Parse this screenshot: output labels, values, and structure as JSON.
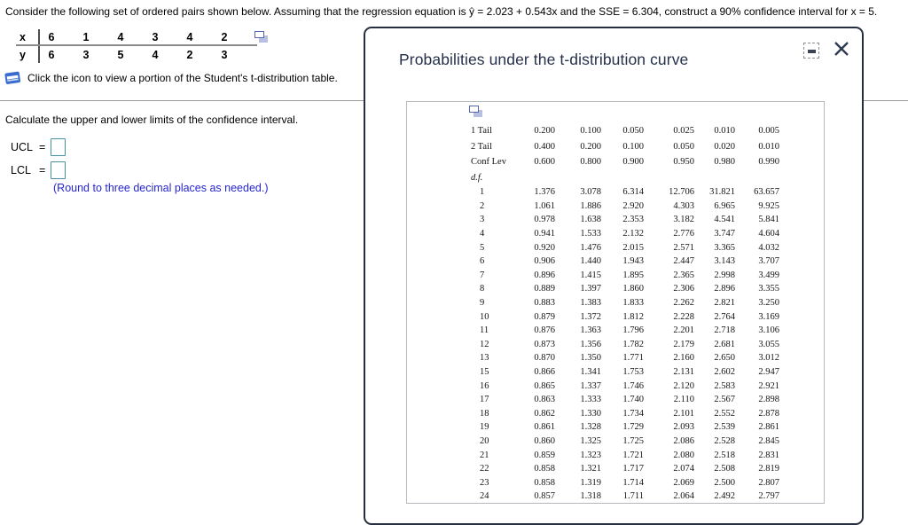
{
  "problem": {
    "statement": "Consider the following set of ordered pairs shown below. Assuming that the regression equation is ŷ = 2.023 + 0.543x and the SSE = 6.304, construct a 90% confidence interval for x = 5.",
    "pairs_table": {
      "x_label": "x",
      "y_label": "y",
      "x_values": [
        "6",
        "1",
        "4",
        "3",
        "4",
        "2"
      ],
      "y_values": [
        "6",
        "3",
        "5",
        "4",
        "2",
        "3"
      ]
    },
    "click_instruction": "Click the icon to view a portion of the Student's t-distribution table."
  },
  "answer_section": {
    "prompt": "Calculate the upper and lower limits of the confidence interval.",
    "ucl_label": "UCL",
    "lcl_label": "LCL",
    "equals": "=",
    "ucl_value": "",
    "lcl_value": "",
    "round_note": "(Round to three decimal places as needed.)",
    "round_note_color": "#2626cf",
    "input_border_color": "#4a90a4"
  },
  "modal": {
    "title": "Probabilities under the t-distribution curve",
    "title_color": "#25304a",
    "t_table": {
      "one_tail": {
        "label": "1 Tail",
        "values": [
          "0.200",
          "0.100",
          "0.050",
          "0.025",
          "0.010",
          "0.005"
        ]
      },
      "two_tail": {
        "label": "2 Tail",
        "values": [
          "0.400",
          "0.200",
          "0.100",
          "0.050",
          "0.020",
          "0.010"
        ]
      },
      "conf_lev": {
        "label": "Conf Lev",
        "values": [
          "0.600",
          "0.800",
          "0.900",
          "0.950",
          "0.980",
          "0.990"
        ]
      },
      "df_label": "d.f.",
      "rows": [
        {
          "df": "1",
          "values": [
            "1.376",
            "3.078",
            "6.314",
            "12.706",
            "31.821",
            "63.657"
          ]
        },
        {
          "df": "2",
          "values": [
            "1.061",
            "1.886",
            "2.920",
            "4.303",
            "6.965",
            "9.925"
          ]
        },
        {
          "df": "3",
          "values": [
            "0.978",
            "1.638",
            "2.353",
            "3.182",
            "4.541",
            "5.841"
          ]
        },
        {
          "df": "4",
          "values": [
            "0.941",
            "1.533",
            "2.132",
            "2.776",
            "3.747",
            "4.604"
          ]
        },
        {
          "df": "5",
          "values": [
            "0.920",
            "1.476",
            "2.015",
            "2.571",
            "3.365",
            "4.032"
          ]
        },
        {
          "df": "6",
          "values": [
            "0.906",
            "1.440",
            "1.943",
            "2.447",
            "3.143",
            "3.707"
          ]
        },
        {
          "df": "7",
          "values": [
            "0.896",
            "1.415",
            "1.895",
            "2.365",
            "2.998",
            "3.499"
          ]
        },
        {
          "df": "8",
          "values": [
            "0.889",
            "1.397",
            "1.860",
            "2.306",
            "2.896",
            "3.355"
          ]
        },
        {
          "df": "9",
          "values": [
            "0.883",
            "1.383",
            "1.833",
            "2.262",
            "2.821",
            "3.250"
          ]
        },
        {
          "df": "10",
          "values": [
            "0.879",
            "1.372",
            "1.812",
            "2.228",
            "2.764",
            "3.169"
          ]
        },
        {
          "df": "11",
          "values": [
            "0.876",
            "1.363",
            "1.796",
            "2.201",
            "2.718",
            "3.106"
          ]
        },
        {
          "df": "12",
          "values": [
            "0.873",
            "1.356",
            "1.782",
            "2.179",
            "2.681",
            "3.055"
          ]
        },
        {
          "df": "13",
          "values": [
            "0.870",
            "1.350",
            "1.771",
            "2.160",
            "2.650",
            "3.012"
          ]
        },
        {
          "df": "15",
          "values": [
            "0.866",
            "1.341",
            "1.753",
            "2.131",
            "2.602",
            "2.947"
          ]
        },
        {
          "df": "16",
          "values": [
            "0.865",
            "1.337",
            "1.746",
            "2.120",
            "2.583",
            "2.921"
          ]
        },
        {
          "df": "17",
          "values": [
            "0.863",
            "1.333",
            "1.740",
            "2.110",
            "2.567",
            "2.898"
          ]
        },
        {
          "df": "18",
          "values": [
            "0.862",
            "1.330",
            "1.734",
            "2.101",
            "2.552",
            "2.878"
          ]
        },
        {
          "df": "19",
          "values": [
            "0.861",
            "1.328",
            "1.729",
            "2.093",
            "2.539",
            "2.861"
          ]
        },
        {
          "df": "20",
          "values": [
            "0.860",
            "1.325",
            "1.725",
            "2.086",
            "2.528",
            "2.845"
          ]
        },
        {
          "df": "21",
          "values": [
            "0.859",
            "1.323",
            "1.721",
            "2.080",
            "2.518",
            "2.831"
          ]
        },
        {
          "df": "22",
          "values": [
            "0.858",
            "1.321",
            "1.717",
            "2.074",
            "2.508",
            "2.819"
          ]
        },
        {
          "df": "23",
          "values": [
            "0.858",
            "1.319",
            "1.714",
            "2.069",
            "2.500",
            "2.807"
          ]
        },
        {
          "df": "24",
          "values": [
            "0.857",
            "1.318",
            "1.711",
            "2.064",
            "2.492",
            "2.797"
          ]
        }
      ]
    }
  },
  "icons": {
    "book_icon": "blue-book",
    "popout_icon": "overlapping-squares",
    "minimize_icon": "minus-in-dashed-box",
    "close_icon": "x-cross"
  }
}
